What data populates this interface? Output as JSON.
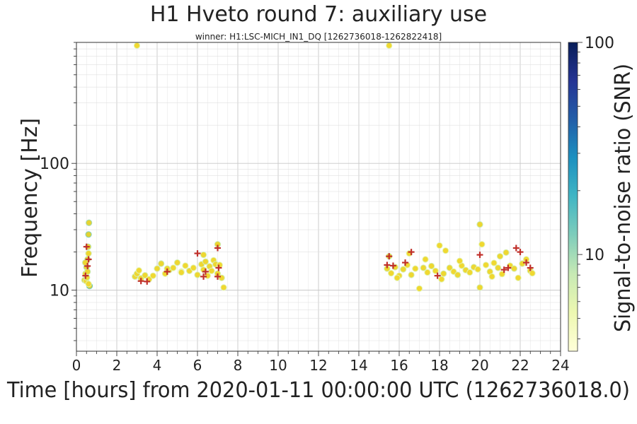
{
  "chart_data": {
    "type": "scatter",
    "title": "H1 Hveto round 7: auxiliary use",
    "subtitle": "winner: H1:LSC-MICH_IN1_DQ [1262736018-1262822418]",
    "xlabel": "Time [hours] from 2020-01-11 00:00:00 UTC (1262736018.0)",
    "ylabel": "Frequency [Hz]",
    "colorbar_label": "Signal-to-noise ratio (SNR)",
    "xlim": [
      0,
      24
    ],
    "ylim": [
      3.3,
      900
    ],
    "yscale": "log",
    "x_ticks": [
      "0",
      "2",
      "4",
      "6",
      "8",
      "10",
      "12",
      "14",
      "16",
      "18",
      "20",
      "22",
      "24"
    ],
    "y_ticks": [
      {
        "value": 10,
        "label": "10"
      },
      {
        "value": 100,
        "label": "100"
      }
    ],
    "colorbar": {
      "scale": "log",
      "range": [
        3.5,
        100
      ],
      "ticks": [
        {
          "value": 10,
          "label": "10"
        },
        {
          "value": 100,
          "label": "100"
        }
      ],
      "colormap": [
        "#ffffd9",
        "#edf8b1",
        "#c7e9b4",
        "#7fcdbb",
        "#41b6c4",
        "#1d91c0",
        "#225ea8",
        "#253494",
        "#081d58"
      ]
    },
    "grid": true,
    "point_color": "#f2d21a",
    "veto_marker_color": "#c0302b",
    "series": [
      {
        "points": [
          [
            0.4,
            12.0
          ],
          [
            0.45,
            13.5
          ],
          [
            0.5,
            15.2
          ],
          [
            0.55,
            17.5
          ],
          [
            0.6,
            19.5
          ],
          [
            0.6,
            27.5
          ],
          [
            0.62,
            34.0
          ],
          [
            0.48,
            11.8
          ],
          [
            0.55,
            14.0
          ],
          [
            0.65,
            10.8
          ],
          [
            0.58,
            22.0
          ],
          [
            0.52,
            12.6
          ],
          [
            0.44,
            16.5
          ],
          [
            0.6,
            11.2
          ],
          [
            2.9,
            12.8
          ],
          [
            3.0,
            13.5
          ],
          [
            3.1,
            14.3
          ],
          [
            3.2,
            12.4
          ],
          [
            3.4,
            13.1
          ],
          [
            3.6,
            12.2
          ],
          [
            3.8,
            13.0
          ],
          [
            4.0,
            14.8
          ],
          [
            4.2,
            16.2
          ],
          [
            4.4,
            13.5
          ],
          [
            4.6,
            14.4
          ],
          [
            4.8,
            15.0
          ],
          [
            5.0,
            16.5
          ],
          [
            5.2,
            14.0
          ],
          [
            5.4,
            15.6
          ],
          [
            5.6,
            14.2
          ],
          [
            5.8,
            15.0
          ],
          [
            6.0,
            13.2
          ],
          [
            6.2,
            16.0
          ],
          [
            6.3,
            14.5
          ],
          [
            6.4,
            16.8
          ],
          [
            6.5,
            13.0
          ],
          [
            6.6,
            15.4
          ],
          [
            6.7,
            14.2
          ],
          [
            6.8,
            17.2
          ],
          [
            6.9,
            16.0
          ],
          [
            7.0,
            23.0
          ],
          [
            7.0,
            13.5
          ],
          [
            7.1,
            15.8
          ],
          [
            7.2,
            12.5
          ],
          [
            7.3,
            10.5
          ],
          [
            6.3,
            19.0
          ],
          [
            5.2,
            13.8
          ],
          [
            4.5,
            14.8
          ],
          [
            15.4,
            14.8
          ],
          [
            15.5,
            18.5
          ],
          [
            15.6,
            13.6
          ],
          [
            15.8,
            15.2
          ],
          [
            16.0,
            13.0
          ],
          [
            16.2,
            14.6
          ],
          [
            16.4,
            15.8
          ],
          [
            16.6,
            13.2
          ],
          [
            16.8,
            14.8
          ],
          [
            17.0,
            10.3
          ],
          [
            17.2,
            15.0
          ],
          [
            17.4,
            13.8
          ],
          [
            17.6,
            15.5
          ],
          [
            17.8,
            14.2
          ],
          [
            18.0,
            22.5
          ],
          [
            18.2,
            13.5
          ],
          [
            18.3,
            20.5
          ],
          [
            18.5,
            15.0
          ],
          [
            18.7,
            14.0
          ],
          [
            18.9,
            13.2
          ],
          [
            19.1,
            15.6
          ],
          [
            19.3,
            14.4
          ],
          [
            19.5,
            13.8
          ],
          [
            19.7,
            15.2
          ],
          [
            19.9,
            14.6
          ],
          [
            20.0,
            33.0
          ],
          [
            20.1,
            23.0
          ],
          [
            20.0,
            10.5
          ],
          [
            20.3,
            15.8
          ],
          [
            20.5,
            14.0
          ],
          [
            20.7,
            16.4
          ],
          [
            20.9,
            15.0
          ],
          [
            21.1,
            13.4
          ],
          [
            21.3,
            19.8
          ],
          [
            21.5,
            15.6
          ],
          [
            21.7,
            14.8
          ],
          [
            21.9,
            12.5
          ],
          [
            22.1,
            16.2
          ],
          [
            22.3,
            17.5
          ],
          [
            22.5,
            14.2
          ],
          [
            22.6,
            13.6
          ],
          [
            16.5,
            19.5
          ],
          [
            17.3,
            17.5
          ],
          [
            19.0,
            17.0
          ],
          [
            21.0,
            18.5
          ],
          [
            15.9,
            12.5
          ],
          [
            18.1,
            12.2
          ],
          [
            20.6,
            12.8
          ],
          [
            3.0,
            850
          ],
          [
            15.5,
            850
          ]
        ],
        "snr": [
          8,
          7,
          9,
          8,
          7,
          12,
          10,
          7,
          8,
          14,
          9,
          7,
          8,
          6,
          7,
          7,
          6,
          7,
          7,
          6,
          6,
          7,
          8,
          6,
          7,
          6,
          7,
          6,
          6,
          7,
          6,
          7,
          7,
          6,
          7,
          6,
          7,
          6,
          6,
          7,
          8,
          7,
          6,
          7,
          6,
          7,
          6,
          7,
          7,
          8,
          6,
          7,
          6,
          7,
          6,
          7,
          6,
          6,
          7,
          6,
          7,
          6,
          6,
          7,
          6,
          7,
          6,
          7,
          6,
          7,
          6,
          7,
          6,
          8,
          6,
          7,
          6,
          7,
          6,
          7,
          6,
          7,
          6,
          7,
          6,
          7,
          6,
          7,
          6,
          6,
          6,
          6,
          7,
          6,
          6,
          6,
          6,
          6
        ]
      },
      {
        "marker": "plus",
        "points": [
          [
            0.5,
            22.0
          ],
          [
            0.55,
            15.5
          ],
          [
            0.45,
            13.0
          ],
          [
            0.6,
            17.5
          ],
          [
            3.2,
            11.8
          ],
          [
            3.5,
            11.7
          ],
          [
            4.5,
            14.0
          ],
          [
            6.0,
            19.5
          ],
          [
            6.3,
            12.8
          ],
          [
            6.4,
            14.0
          ],
          [
            7.0,
            21.5
          ],
          [
            7.05,
            15.0
          ],
          [
            7.0,
            12.8
          ],
          [
            15.4,
            15.8
          ],
          [
            15.5,
            18.5
          ],
          [
            15.7,
            15.6
          ],
          [
            16.3,
            16.5
          ],
          [
            16.6,
            20.0
          ],
          [
            17.9,
            13.0
          ],
          [
            20.0,
            19.0
          ],
          [
            21.2,
            14.5
          ],
          [
            21.4,
            15.0
          ],
          [
            21.8,
            21.5
          ],
          [
            22.0,
            20.0
          ],
          [
            22.3,
            16.5
          ],
          [
            22.5,
            15.0
          ]
        ]
      }
    ]
  }
}
